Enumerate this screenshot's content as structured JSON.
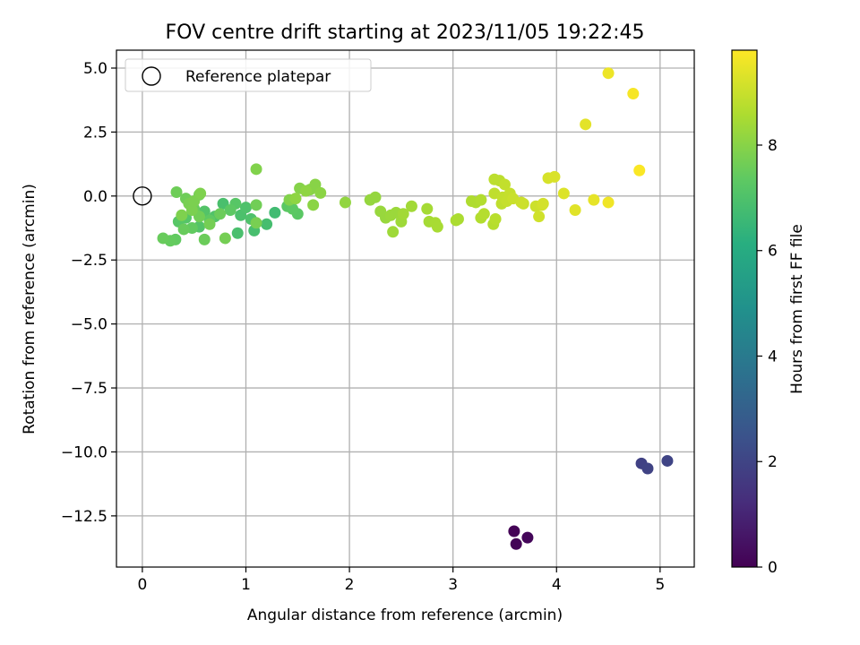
{
  "chart_data": {
    "type": "scatter",
    "title": "FOV centre drift starting at 2023/11/05 19:22:45",
    "xlabel": "Angular distance from reference (arcmin)",
    "ylabel": "Rotation from reference (arcmin)",
    "xlim": [
      -0.25,
      5.33
    ],
    "ylim": [
      -14.5,
      5.7
    ],
    "grid": true,
    "xticks": [
      0,
      1,
      2,
      3,
      4,
      5
    ],
    "xtick_labels": [
      "0",
      "1",
      "2",
      "3",
      "4",
      "5"
    ],
    "yticks": [
      5.0,
      2.5,
      0.0,
      -2.5,
      -5.0,
      -7.5,
      -10.0,
      -12.5
    ],
    "ytick_labels": [
      "5.0",
      "2.5",
      "0.0",
      "−2.5",
      "−5.0",
      "−7.5",
      "−10.0",
      "−12.5"
    ],
    "legend": {
      "position": "top-left",
      "entries": [
        {
          "label": "Reference platepar",
          "marker": "open-circle"
        }
      ]
    },
    "reference_point": {
      "x": 0,
      "y": 0
    },
    "colorbar": {
      "label": "Hours from first FF file",
      "range": [
        0,
        9.8
      ],
      "ticks": [
        0,
        2,
        4,
        6,
        8
      ],
      "tick_labels": [
        "0",
        "2",
        "4",
        "6",
        "8"
      ],
      "colormap": "viridis"
    },
    "points": [
      {
        "x": 3.59,
        "y": -13.1,
        "t": 0.05
      },
      {
        "x": 3.61,
        "y": -13.6,
        "t": 0.1
      },
      {
        "x": 3.72,
        "y": -13.35,
        "t": 0.15
      },
      {
        "x": 4.82,
        "y": -10.45,
        "t": 1.9
      },
      {
        "x": 4.88,
        "y": -10.65,
        "t": 1.95
      },
      {
        "x": 5.07,
        "y": -10.35,
        "t": 2.0
      },
      {
        "x": 1.28,
        "y": -0.65,
        "t": 6.7
      },
      {
        "x": 1.2,
        "y": -1.1,
        "t": 6.8
      },
      {
        "x": 1.08,
        "y": -1.35,
        "t": 6.85
      },
      {
        "x": 0.92,
        "y": -1.45,
        "t": 6.9
      },
      {
        "x": 0.78,
        "y": -0.3,
        "t": 6.9
      },
      {
        "x": 0.95,
        "y": -0.75,
        "t": 6.95
      },
      {
        "x": 1.0,
        "y": -0.45,
        "t": 7.0
      },
      {
        "x": 1.05,
        "y": -0.9,
        "t": 7.0
      },
      {
        "x": 0.7,
        "y": -0.8,
        "t": 7.05
      },
      {
        "x": 0.6,
        "y": -0.6,
        "t": 7.1
      },
      {
        "x": 0.55,
        "y": -1.2,
        "t": 7.1
      },
      {
        "x": 0.42,
        "y": -0.85,
        "t": 7.15
      },
      {
        "x": 0.35,
        "y": -1.0,
        "t": 7.2
      },
      {
        "x": 0.9,
        "y": -0.3,
        "t": 7.2
      },
      {
        "x": 1.4,
        "y": -0.4,
        "t": 7.25
      },
      {
        "x": 1.5,
        "y": -0.7,
        "t": 7.25
      },
      {
        "x": 1.45,
        "y": -0.5,
        "t": 7.3
      },
      {
        "x": 0.85,
        "y": -0.55,
        "t": 7.3
      },
      {
        "x": 0.65,
        "y": -0.95,
        "t": 7.35
      },
      {
        "x": 0.48,
        "y": -1.25,
        "t": 7.4
      },
      {
        "x": 0.32,
        "y": -1.7,
        "t": 7.4
      },
      {
        "x": 0.27,
        "y": -1.75,
        "t": 7.45
      },
      {
        "x": 0.2,
        "y": -1.65,
        "t": 7.5
      },
      {
        "x": 0.4,
        "y": -1.3,
        "t": 7.5
      },
      {
        "x": 0.5,
        "y": -0.5,
        "t": 7.5
      },
      {
        "x": 0.6,
        "y": -1.7,
        "t": 7.55
      },
      {
        "x": 0.75,
        "y": -0.7,
        "t": 7.55
      },
      {
        "x": 0.33,
        "y": 0.15,
        "t": 7.6
      },
      {
        "x": 0.42,
        "y": -0.1,
        "t": 7.6
      },
      {
        "x": 0.55,
        "y": 0.05,
        "t": 7.6
      },
      {
        "x": 0.55,
        "y": -0.8,
        "t": 7.65
      },
      {
        "x": 1.1,
        "y": -0.35,
        "t": 7.65
      },
      {
        "x": 0.65,
        "y": -1.1,
        "t": 7.7
      },
      {
        "x": 0.8,
        "y": -1.65,
        "t": 7.7
      },
      {
        "x": 1.1,
        "y": -1.05,
        "t": 7.75
      },
      {
        "x": 0.45,
        "y": -0.3,
        "t": 7.75
      },
      {
        "x": 0.48,
        "y": -0.55,
        "t": 7.8
      },
      {
        "x": 0.5,
        "y": -0.2,
        "t": 7.8
      },
      {
        "x": 0.56,
        "y": 0.1,
        "t": 7.85
      },
      {
        "x": 0.38,
        "y": -0.75,
        "t": 7.85
      },
      {
        "x": 1.1,
        "y": 1.05,
        "t": 7.9
      },
      {
        "x": 1.42,
        "y": -0.15,
        "t": 7.9
      },
      {
        "x": 1.52,
        "y": 0.3,
        "t": 7.95
      },
      {
        "x": 1.62,
        "y": 0.25,
        "t": 8.0
      },
      {
        "x": 1.67,
        "y": 0.45,
        "t": 8.0
      },
      {
        "x": 1.72,
        "y": 0.12,
        "t": 8.05
      },
      {
        "x": 1.65,
        "y": -0.35,
        "t": 8.05
      },
      {
        "x": 1.48,
        "y": -0.1,
        "t": 8.1
      },
      {
        "x": 1.58,
        "y": 0.2,
        "t": 8.1
      },
      {
        "x": 1.96,
        "y": -0.25,
        "t": 8.15
      },
      {
        "x": 2.2,
        "y": -0.15,
        "t": 8.2
      },
      {
        "x": 2.25,
        "y": -0.05,
        "t": 8.2
      },
      {
        "x": 2.3,
        "y": -0.6,
        "t": 8.25
      },
      {
        "x": 2.35,
        "y": -0.85,
        "t": 8.25
      },
      {
        "x": 2.4,
        "y": -0.75,
        "t": 8.3
      },
      {
        "x": 2.45,
        "y": -0.65,
        "t": 8.3
      },
      {
        "x": 2.42,
        "y": -1.4,
        "t": 8.35
      },
      {
        "x": 2.5,
        "y": -1.0,
        "t": 8.35
      },
      {
        "x": 2.52,
        "y": -0.7,
        "t": 8.4
      },
      {
        "x": 2.6,
        "y": -0.4,
        "t": 8.4
      },
      {
        "x": 2.75,
        "y": -0.5,
        "t": 8.45
      },
      {
        "x": 2.77,
        "y": -1.0,
        "t": 8.45
      },
      {
        "x": 2.83,
        "y": -1.05,
        "t": 8.5
      },
      {
        "x": 2.85,
        "y": -1.2,
        "t": 8.5
      },
      {
        "x": 3.03,
        "y": -0.95,
        "t": 8.55
      },
      {
        "x": 3.05,
        "y": -0.9,
        "t": 8.55
      },
      {
        "x": 3.18,
        "y": -0.2,
        "t": 8.6
      },
      {
        "x": 3.22,
        "y": -0.25,
        "t": 8.6
      },
      {
        "x": 3.27,
        "y": -0.15,
        "t": 8.65
      },
      {
        "x": 3.27,
        "y": -0.85,
        "t": 8.65
      },
      {
        "x": 3.3,
        "y": -0.7,
        "t": 8.7
      },
      {
        "x": 3.39,
        "y": -1.1,
        "t": 8.7
      },
      {
        "x": 3.41,
        "y": -0.9,
        "t": 8.75
      },
      {
        "x": 3.4,
        "y": 0.65,
        "t": 8.8
      },
      {
        "x": 3.45,
        "y": 0.6,
        "t": 8.8
      },
      {
        "x": 3.4,
        "y": 0.1,
        "t": 8.85
      },
      {
        "x": 3.47,
        "y": -0.3,
        "t": 8.85
      },
      {
        "x": 3.5,
        "y": 0.45,
        "t": 8.9
      },
      {
        "x": 3.48,
        "y": -0.05,
        "t": 8.9
      },
      {
        "x": 3.52,
        "y": -0.2,
        "t": 8.95
      },
      {
        "x": 3.55,
        "y": 0.1,
        "t": 8.95
      },
      {
        "x": 3.58,
        "y": -0.1,
        "t": 9.0
      },
      {
        "x": 3.68,
        "y": -0.3,
        "t": 9.0
      },
      {
        "x": 3.66,
        "y": -0.25,
        "t": 9.05
      },
      {
        "x": 3.8,
        "y": -0.4,
        "t": 9.05
      },
      {
        "x": 3.83,
        "y": -0.8,
        "t": 9.1
      },
      {
        "x": 3.86,
        "y": -0.35,
        "t": 9.1
      },
      {
        "x": 3.87,
        "y": -0.3,
        "t": 9.15
      },
      {
        "x": 3.92,
        "y": 0.7,
        "t": 9.2
      },
      {
        "x": 3.98,
        "y": 0.75,
        "t": 9.25
      },
      {
        "x": 4.07,
        "y": 0.1,
        "t": 9.3
      },
      {
        "x": 4.18,
        "y": -0.55,
        "t": 9.35
      },
      {
        "x": 4.28,
        "y": 2.8,
        "t": 9.4
      },
      {
        "x": 4.36,
        "y": -0.15,
        "t": 9.45
      },
      {
        "x": 4.5,
        "y": 4.8,
        "t": 9.55
      },
      {
        "x": 4.5,
        "y": -0.25,
        "t": 9.6
      },
      {
        "x": 4.74,
        "y": 4.0,
        "t": 9.7
      },
      {
        "x": 4.8,
        "y": 1.0,
        "t": 9.75
      }
    ]
  }
}
